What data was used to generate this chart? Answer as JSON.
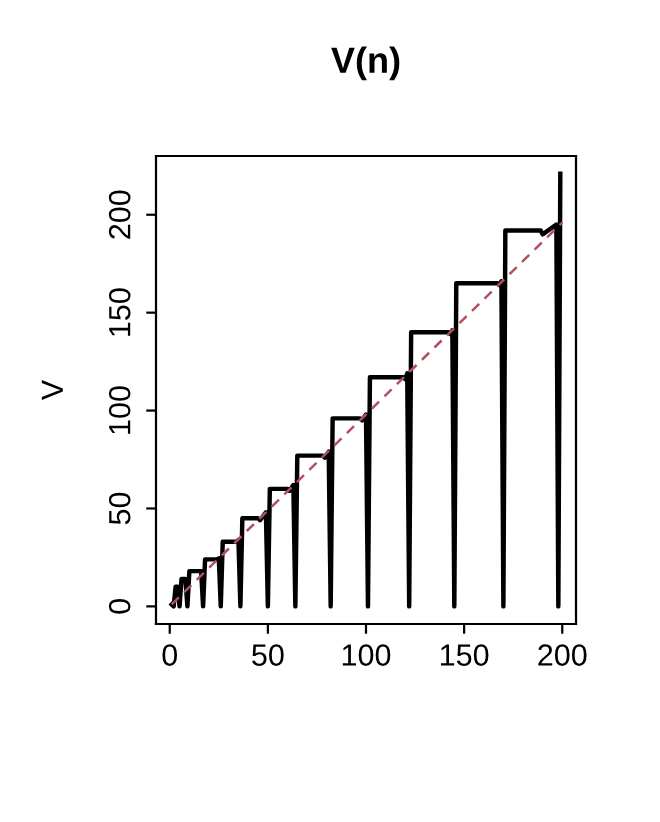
{
  "chart_data": {
    "type": "line",
    "title": "V(n)",
    "ylabel": "V",
    "series": [
      {
        "color": "#000000",
        "line_style": "solid",
        "x": [
          1,
          2,
          3,
          4,
          5,
          6,
          8,
          9,
          10,
          16,
          17,
          18,
          24,
          25,
          26,
          27,
          33,
          34,
          35,
          36,
          37,
          45,
          46,
          49,
          50,
          51,
          60,
          61,
          63,
          64,
          65,
          78,
          79,
          81,
          82,
          83,
          97,
          98,
          100,
          101,
          102,
          119,
          120,
          121,
          122,
          123,
          142,
          143,
          144,
          145,
          146,
          167,
          168,
          169,
          170,
          171,
          189,
          190,
          197,
          198,
          199
        ],
        "values": [
          1,
          0,
          10,
          10,
          0,
          14,
          14,
          0,
          18,
          18,
          0,
          24,
          24,
          24.5,
          0,
          33,
          33,
          33,
          34,
          0,
          45,
          45,
          44,
          48,
          0,
          60,
          60,
          59,
          62,
          0,
          77,
          77,
          76,
          79,
          0,
          96,
          96,
          95,
          98,
          0,
          117,
          117,
          116,
          119,
          0,
          140,
          140,
          139,
          141,
          0,
          165,
          165,
          164,
          166,
          0,
          192,
          192,
          190,
          195,
          0,
          221
        ]
      },
      {
        "color": "#b05060",
        "line_style": "dashed",
        "x": [
          1,
          200
        ],
        "values": [
          1,
          196
        ]
      }
    ],
    "xlim": [
      -7,
      207
    ],
    "ylim": [
      -9,
      230
    ],
    "xticks": [
      0,
      50,
      100,
      150,
      200
    ],
    "yticks": [
      0,
      50,
      100,
      150,
      200
    ],
    "grid": false
  }
}
